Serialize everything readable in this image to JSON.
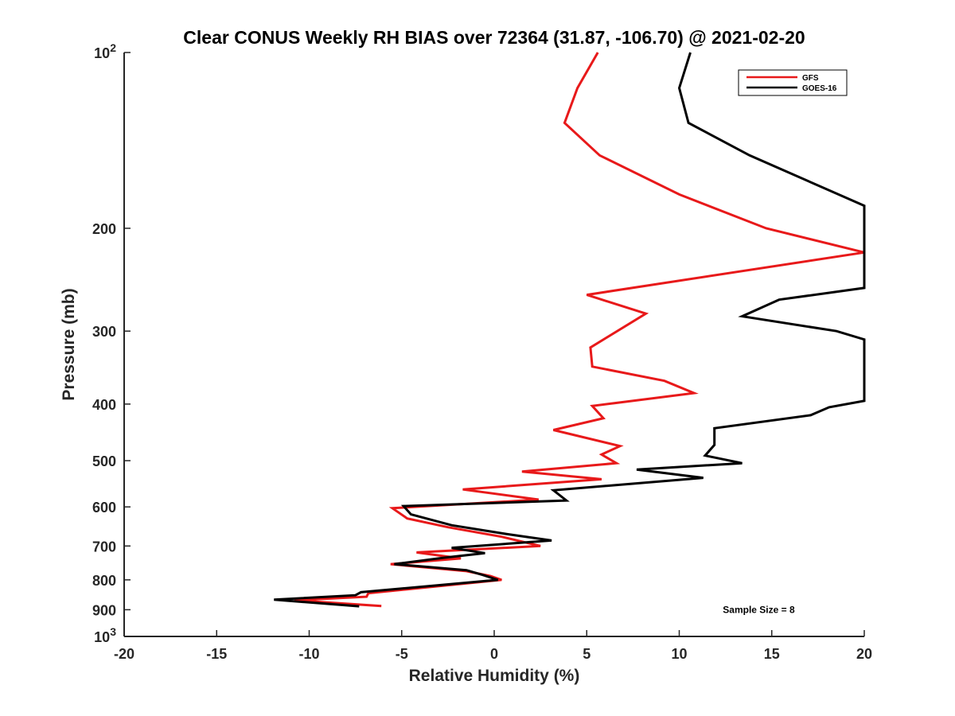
{
  "chart_data": {
    "type": "line",
    "title": "Clear CONUS Weekly RH BIAS over 72364 (31.87, -106.70) @ 2021-02-20",
    "xlabel": "Relative Humidity (%)",
    "ylabel": "Pressure (mb)",
    "xlim": [
      -20,
      20
    ],
    "ylim": [
      100,
      1000
    ],
    "yscale": "log",
    "y_reversed": true,
    "grid": false,
    "legend_position": "top-right",
    "x_ticks": [
      -20,
      -15,
      -10,
      -5,
      0,
      5,
      10,
      15,
      20
    ],
    "x_tick_labels": [
      "-20",
      "-15",
      "-10",
      "-5",
      "0",
      "5",
      "10",
      "15",
      "20"
    ],
    "y_ticks": [
      200,
      300,
      400,
      500,
      600,
      700,
      800,
      900
    ],
    "y_tick_labels": [
      "200",
      "300",
      "400",
      "500",
      "600",
      "700",
      "800",
      "900"
    ],
    "y_power_ticks": [
      {
        "value": 100,
        "base": "10",
        "exp": "2"
      },
      {
        "value": 1000,
        "base": "10",
        "exp": "3"
      }
    ],
    "series": [
      {
        "name": "GFS",
        "color": "#e8191a",
        "points": [
          [
            5.6,
            100
          ],
          [
            4.5,
            115
          ],
          [
            3.8,
            132
          ],
          [
            5.7,
            150
          ],
          [
            10.0,
            175
          ],
          [
            14.7,
            200
          ],
          [
            20.0,
            220
          ],
          [
            5.0,
            260
          ],
          [
            8.2,
            280
          ],
          [
            5.2,
            320
          ],
          [
            5.3,
            345
          ],
          [
            9.2,
            365
          ],
          [
            10.8,
            383
          ],
          [
            5.3,
            403
          ],
          [
            5.9,
            423
          ],
          [
            3.2,
            443
          ],
          [
            6.8,
            472
          ],
          [
            5.8,
            488
          ],
          [
            6.6,
            505
          ],
          [
            1.5,
            522
          ],
          [
            5.8,
            538
          ],
          [
            -1.7,
            560
          ],
          [
            2.4,
            583
          ],
          [
            -5.5,
            603
          ],
          [
            -4.7,
            628
          ],
          [
            -2.5,
            650
          ],
          [
            0.4,
            675
          ],
          [
            2.5,
            700
          ],
          [
            -4.2,
            718
          ],
          [
            -1.8,
            735
          ],
          [
            -5.6,
            752
          ],
          [
            -1.5,
            773
          ],
          [
            -0.2,
            788
          ],
          [
            0.4,
            800
          ],
          [
            -6.8,
            843
          ],
          [
            -6.9,
            855
          ],
          [
            -10.8,
            867
          ],
          [
            -6.1,
            887
          ]
        ]
      },
      {
        "name": "GOES-16",
        "color": "#000000",
        "points": [
          [
            10.6,
            100
          ],
          [
            10.0,
            115
          ],
          [
            10.5,
            132
          ],
          [
            13.8,
            150
          ],
          [
            20.0,
            183
          ],
          [
            20.0,
            253
          ],
          [
            15.4,
            265
          ],
          [
            13.4,
            283
          ],
          [
            18.5,
            300
          ],
          [
            20.0,
            310
          ],
          [
            20.0,
            395
          ],
          [
            18.1,
            405
          ],
          [
            17.1,
            418
          ],
          [
            11.9,
            440
          ],
          [
            11.9,
            470
          ],
          [
            11.4,
            490
          ],
          [
            13.4,
            505
          ],
          [
            7.7,
            518
          ],
          [
            11.3,
            535
          ],
          [
            3.2,
            562
          ],
          [
            3.9,
            585
          ],
          [
            -4.9,
            598
          ],
          [
            -4.5,
            618
          ],
          [
            -2.3,
            645
          ],
          [
            0.7,
            668
          ],
          [
            3.1,
            685
          ],
          [
            -2.3,
            705
          ],
          [
            -0.5,
            720
          ],
          [
            -2.7,
            733
          ],
          [
            -5.4,
            752
          ],
          [
            -1.5,
            770
          ],
          [
            -0.6,
            785
          ],
          [
            0.2,
            800
          ],
          [
            -7.2,
            840
          ],
          [
            -7.5,
            850
          ],
          [
            -11.9,
            865
          ],
          [
            -7.3,
            888
          ]
        ]
      }
    ],
    "annotations": [
      {
        "text": "Sample Size = 8",
        "x": 14.3,
        "y": 900
      }
    ]
  }
}
